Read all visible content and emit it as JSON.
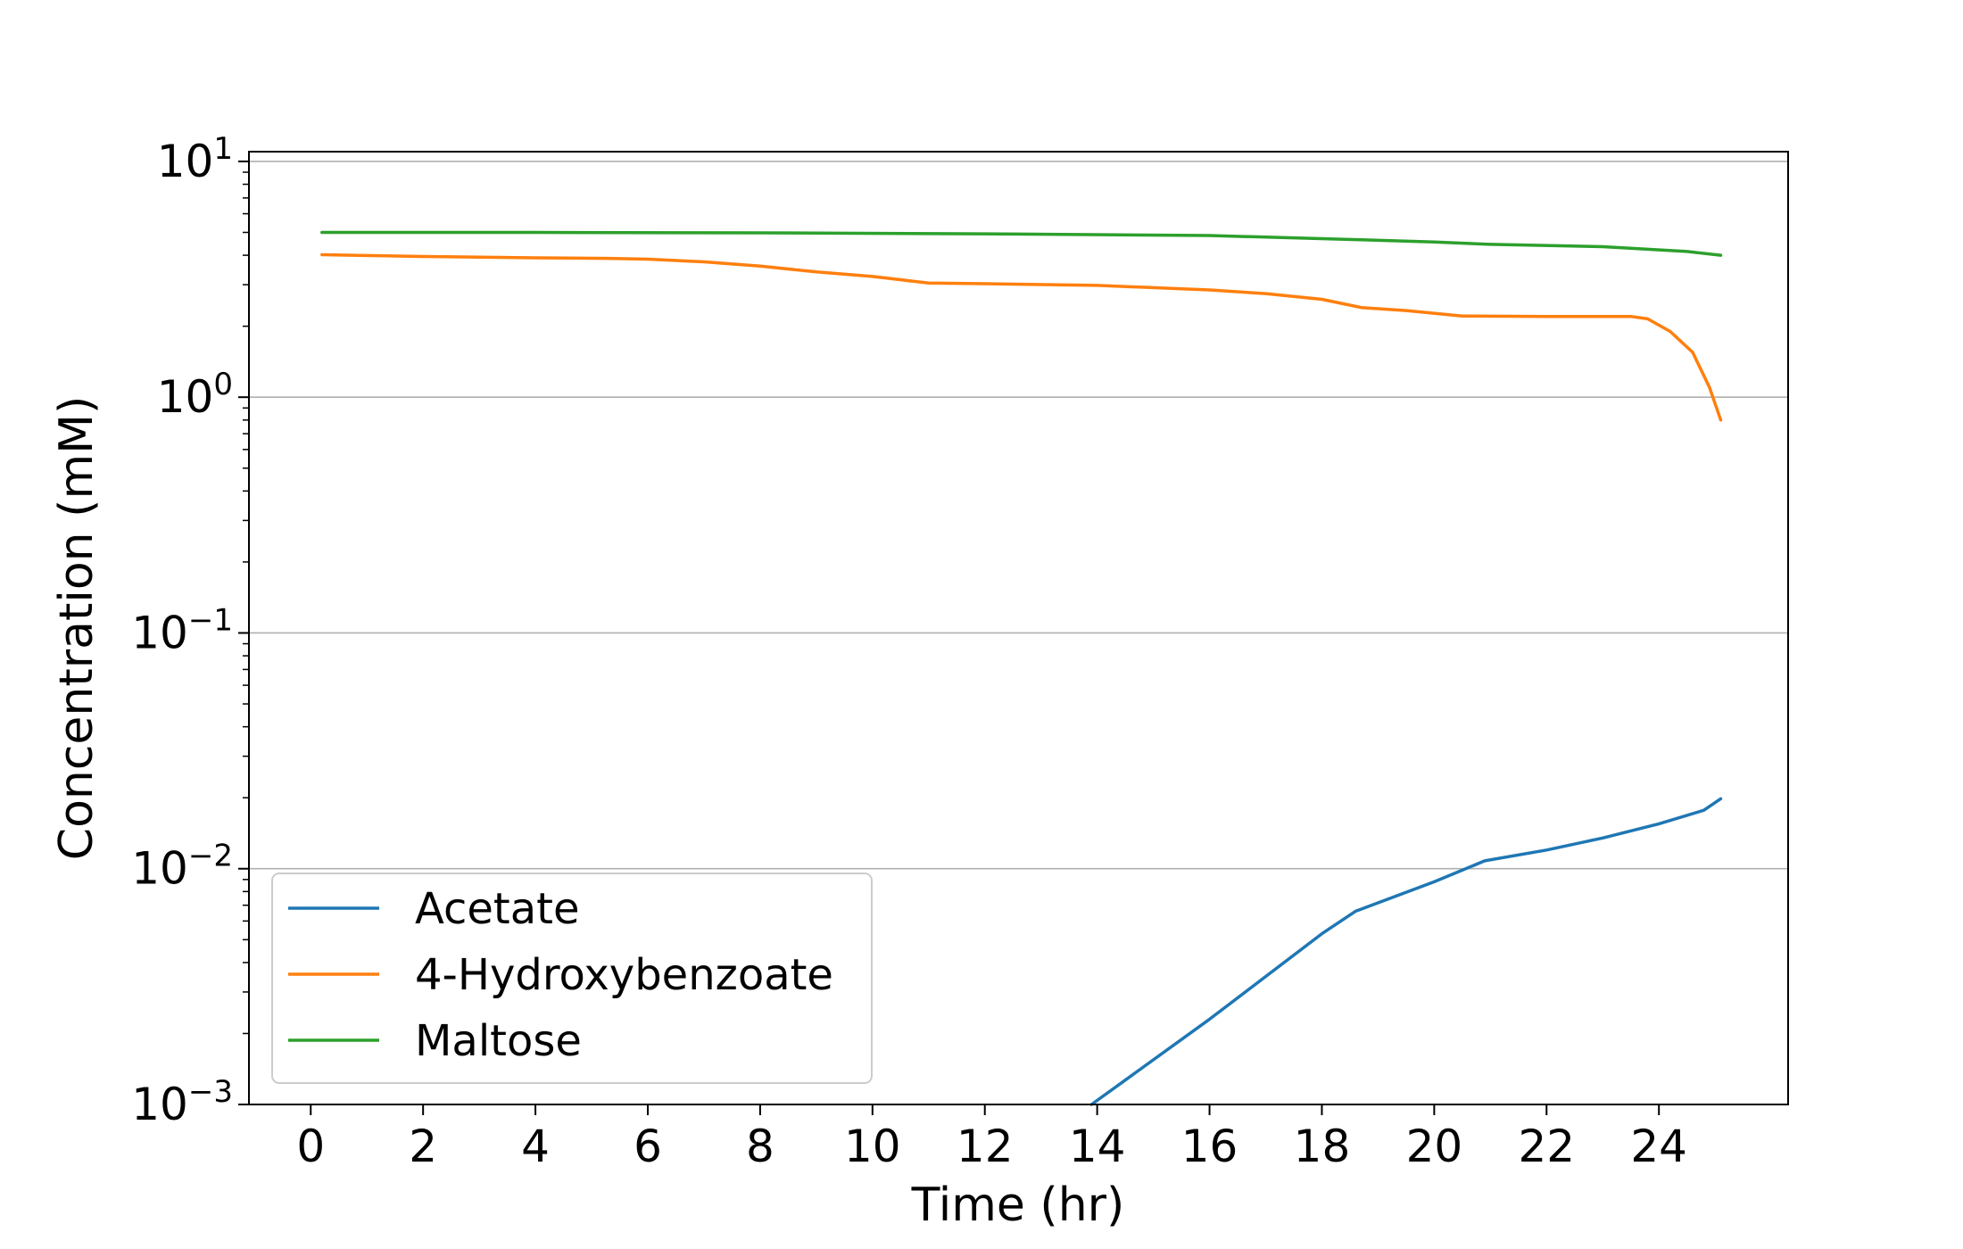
{
  "chart_data": {
    "type": "line",
    "xlabel": "Time (hr)",
    "ylabel": "Concentration (mM)",
    "xlim": [
      -1.1,
      26.3
    ],
    "ylim": [
      0.001,
      11
    ],
    "yscale": "log",
    "xticks": [
      0,
      2,
      4,
      6,
      8,
      10,
      12,
      14,
      16,
      18,
      20,
      22,
      24
    ],
    "yticks": [
      {
        "base": "10",
        "exp": "−3",
        "value": 0.001
      },
      {
        "base": "10",
        "exp": "−2",
        "value": 0.01
      },
      {
        "base": "10",
        "exp": "−1",
        "value": 0.1
      },
      {
        "base": "10",
        "exp": "0",
        "value": 1
      },
      {
        "base": "10",
        "exp": "1",
        "value": 10
      }
    ],
    "grid": "y-major",
    "legend_position": "lower-left",
    "series": [
      {
        "name": "Acetate",
        "color": "#1f77b4",
        "points": [
          [
            13.9,
            0.001
          ],
          [
            16,
            0.0023
          ],
          [
            18,
            0.0053
          ],
          [
            18.6,
            0.0066
          ],
          [
            20,
            0.0088
          ],
          [
            20.9,
            0.0108
          ],
          [
            22,
            0.012
          ],
          [
            23,
            0.0135
          ],
          [
            24,
            0.0155
          ],
          [
            24.8,
            0.0177
          ],
          [
            25.1,
            0.0198
          ]
        ]
      },
      {
        "name": "4-Hydroxybenzoate",
        "color": "#ff7f0e",
        "points": [
          [
            0.2,
            4.02
          ],
          [
            2,
            3.95
          ],
          [
            4,
            3.9
          ],
          [
            5.3,
            3.88
          ],
          [
            6,
            3.85
          ],
          [
            7,
            3.75
          ],
          [
            8,
            3.6
          ],
          [
            9,
            3.4
          ],
          [
            10,
            3.25
          ],
          [
            11,
            3.05
          ],
          [
            12,
            3.03
          ],
          [
            14,
            2.98
          ],
          [
            16,
            2.85
          ],
          [
            17,
            2.75
          ],
          [
            18,
            2.6
          ],
          [
            18.7,
            2.4
          ],
          [
            19.5,
            2.33
          ],
          [
            20.5,
            2.21
          ],
          [
            22,
            2.2
          ],
          [
            23.5,
            2.2
          ],
          [
            23.8,
            2.15
          ],
          [
            24.2,
            1.9
          ],
          [
            24.6,
            1.55
          ],
          [
            24.9,
            1.1
          ],
          [
            25.1,
            0.8
          ]
        ]
      },
      {
        "name": "Maltose",
        "color": "#2ca02c",
        "points": [
          [
            0.2,
            5.0
          ],
          [
            4,
            5.0
          ],
          [
            8,
            4.98
          ],
          [
            12,
            4.93
          ],
          [
            16,
            4.85
          ],
          [
            18.7,
            4.65
          ],
          [
            20,
            4.55
          ],
          [
            21,
            4.45
          ],
          [
            23,
            4.35
          ],
          [
            24.5,
            4.15
          ],
          [
            25.1,
            4.0
          ]
        ]
      }
    ]
  }
}
